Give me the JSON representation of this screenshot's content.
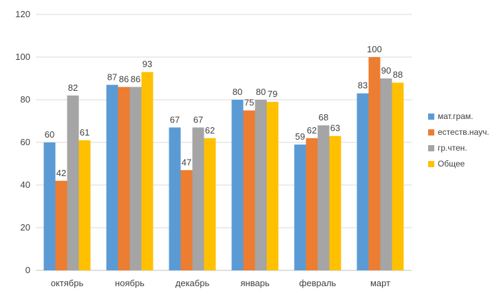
{
  "chart_data": {
    "type": "bar",
    "categories": [
      "октябрь",
      "ноябрь",
      "декабрь",
      "январь",
      "февраль",
      "март"
    ],
    "series": [
      {
        "name": "мат.грам.",
        "color": "#5B9BD5",
        "values": [
          60,
          87,
          67,
          80,
          59,
          83
        ]
      },
      {
        "name": "естеств.науч.",
        "color": "#ED7D31",
        "values": [
          42,
          86,
          47,
          75,
          62,
          100
        ]
      },
      {
        "name": "гр.чтен.",
        "color": "#A5A5A5",
        "values": [
          82,
          86,
          67,
          80,
          68,
          90
        ]
      },
      {
        "name": "Общее",
        "color": "#FFC000",
        "values": [
          61,
          93,
          62,
          79,
          63,
          88
        ]
      }
    ],
    "ylim": [
      0,
      120
    ],
    "yticks": [
      0,
      20,
      40,
      60,
      80,
      100,
      120
    ],
    "grid": true,
    "legend": "right"
  }
}
